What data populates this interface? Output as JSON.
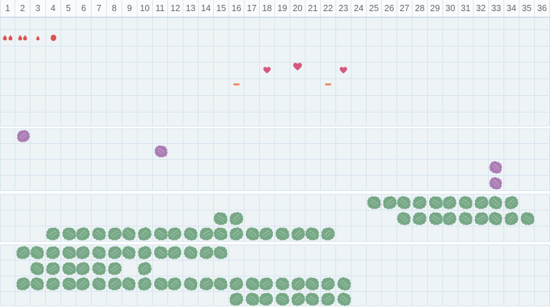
{
  "colors": {
    "page_bg": "#ffffff",
    "cell_bg": "#eef3f6",
    "grid_line": "#d5e5ee",
    "header_bg": "#f9fbfc",
    "header_border": "#ccd9e1",
    "header_text": "#5d6a74",
    "droplet": "#d9534f",
    "heart": "#d6587f",
    "dash": "#ed8a62",
    "purple": "#aa7db3",
    "green": "#77a886"
  },
  "chart_data": {
    "type": "heatmap",
    "title": "",
    "xlabel": "",
    "ylabel": "",
    "columns": 36,
    "x_range": [
      1,
      36
    ],
    "grid": true,
    "legend_position": "none",
    "x_tick_labels": [
      "1",
      "2",
      "3",
      "4",
      "5",
      "6",
      "7",
      "8",
      "9",
      "10",
      "11",
      "12",
      "13",
      "14",
      "15",
      "16",
      "17",
      "18",
      "19",
      "20",
      "21",
      "22",
      "23",
      "24",
      "25",
      "26",
      "27",
      "28",
      "29",
      "30",
      "31",
      "32",
      "33",
      "34",
      "35",
      "36"
    ],
    "sections": [
      {
        "id": "symptom-symbols",
        "rows": [
          {
            "marks": []
          },
          {
            "marks": [
              {
                "symbol": "droplets",
                "day": 1,
                "count": 2
              },
              {
                "symbol": "droplets",
                "day": 2,
                "count": 2
              },
              {
                "symbol": "droplet-small",
                "day": 3,
                "count": 1
              },
              {
                "symbol": "dot",
                "day": 4,
                "count": 1
              }
            ]
          },
          {
            "marks": []
          },
          {
            "marks": [
              {
                "symbol": "heart",
                "day": 18,
                "size": "small"
              },
              {
                "symbol": "heart",
                "day": 20,
                "size": "large"
              },
              {
                "symbol": "heart",
                "day": 23,
                "size": "small"
              }
            ]
          },
          {
            "marks": [
              {
                "symbol": "dash",
                "day": 16
              },
              {
                "symbol": "dash",
                "day": 22
              }
            ]
          },
          {
            "marks": []
          },
          {
            "marks": []
          }
        ]
      },
      {
        "id": "purple-scribbles",
        "rows": [
          {
            "marks": [
              {
                "symbol": "scribble",
                "color": "purple",
                "day": 2
              }
            ]
          },
          {
            "marks": [
              {
                "symbol": "scribble",
                "color": "purple",
                "day": 11
              }
            ]
          },
          {
            "marks": [
              {
                "symbol": "scribble",
                "color": "purple",
                "day": 33
              }
            ]
          },
          {
            "marks": [
              {
                "symbol": "scribble",
                "color": "purple",
                "day": 33
              }
            ]
          }
        ]
      },
      {
        "id": "green-scribbles-upper",
        "rows": [
          {
            "marks": [
              {
                "symbol": "scribble",
                "color": "green",
                "from": 25,
                "to": 34
              }
            ]
          },
          {
            "marks": [
              {
                "symbol": "scribble",
                "color": "green",
                "days": [
                  15,
                  16
                ]
              },
              {
                "symbol": "scribble",
                "color": "green",
                "from": 27,
                "to": 35
              }
            ]
          },
          {
            "marks": [
              {
                "symbol": "scribble",
                "color": "green",
                "from": 4,
                "to": 22
              }
            ]
          }
        ]
      },
      {
        "id": "green-scribbles-lower",
        "rows": [
          {
            "marks": [
              {
                "symbol": "scribble",
                "color": "green",
                "from": 2,
                "to": 15
              }
            ]
          },
          {
            "marks": [
              {
                "symbol": "scribble",
                "color": "green",
                "from": 3,
                "to": 8
              },
              {
                "symbol": "scribble",
                "color": "green",
                "day": 10
              }
            ]
          },
          {
            "marks": [
              {
                "symbol": "scribble",
                "color": "green",
                "from": 2,
                "to": 23
              }
            ]
          },
          {
            "marks": [
              {
                "symbol": "scribble",
                "color": "green",
                "from": 16,
                "to": 23
              }
            ]
          }
        ]
      }
    ]
  }
}
